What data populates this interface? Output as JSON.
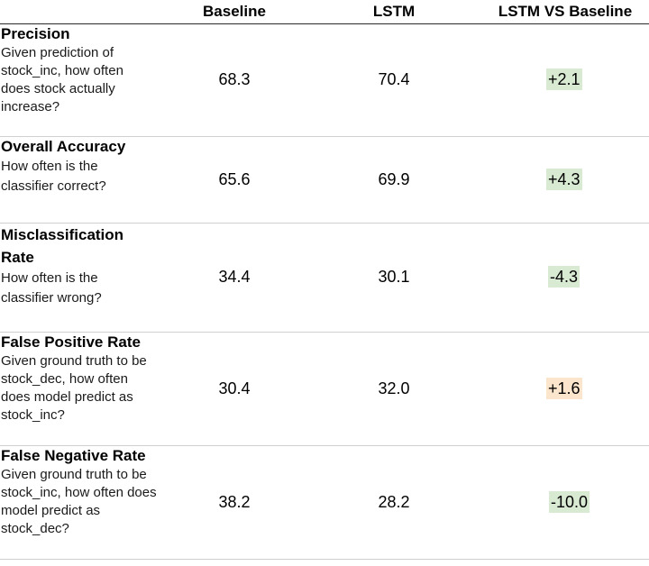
{
  "colors": {
    "improvement": "#d9ead3",
    "regression": "#fce5cd"
  },
  "columns": {
    "baseline": "Baseline",
    "lstm": "LSTM",
    "diff": "LSTM VS Baseline"
  },
  "rows": [
    {
      "title": "Precision",
      "description": "Given prediction of stock_inc, how often does stock actually increase?",
      "baseline": "68.3",
      "lstm": "70.4",
      "diff": "+2.1",
      "diff_status": "improvement"
    },
    {
      "title": "Overall Accuracy",
      "description": "How often is the classifier correct?",
      "baseline": "65.6",
      "lstm": "69.9",
      "diff": "+4.3",
      "diff_status": "improvement"
    },
    {
      "title": "Misclassification Rate",
      "description": "How often is the classifier wrong?",
      "baseline": "34.4",
      "lstm": "30.1",
      "diff": "-4.3",
      "diff_status": "improvement"
    },
    {
      "title": "False Positive Rate",
      "description": "Given ground truth to be stock_dec, how often does model predict as stock_inc?",
      "baseline": "30.4",
      "lstm": "32.0",
      "diff": "+1.6",
      "diff_status": "regression"
    },
    {
      "title": "False Negative Rate",
      "description": "Given ground truth to be stock_inc, how often does model predict as stock_dec?",
      "baseline": "38.2",
      "lstm": "28.2",
      "diff": "-10.0",
      "diff_status": "improvement"
    }
  ]
}
